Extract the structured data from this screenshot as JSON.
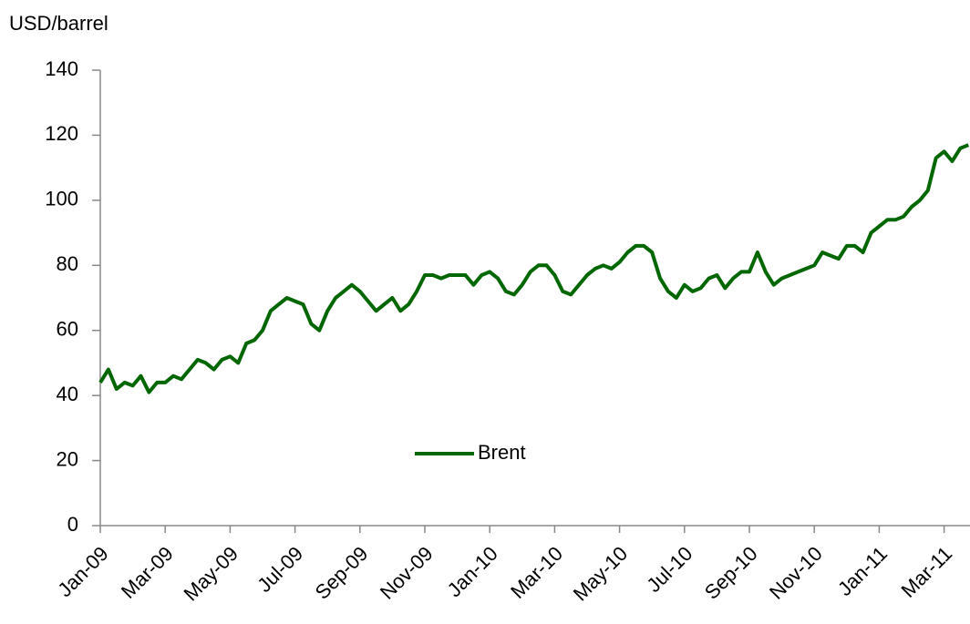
{
  "chart_data": {
    "type": "line",
    "y_label": "USD/barrel",
    "categories": [
      "Jan-09",
      null,
      null,
      null,
      null,
      null,
      null,
      null,
      "Mar-09",
      null,
      null,
      null,
      null,
      null,
      null,
      null,
      "May-09",
      null,
      null,
      null,
      null,
      null,
      null,
      null,
      "Jul-09",
      null,
      null,
      null,
      null,
      null,
      null,
      null,
      "Sep-09",
      null,
      null,
      null,
      null,
      null,
      null,
      null,
      "Nov-09",
      null,
      null,
      null,
      null,
      null,
      null,
      null,
      "Jan-10",
      null,
      null,
      null,
      null,
      null,
      null,
      null,
      "Mar-10",
      null,
      null,
      null,
      null,
      null,
      null,
      null,
      "May-10",
      null,
      null,
      null,
      null,
      null,
      null,
      null,
      "Jul-10",
      null,
      null,
      null,
      null,
      null,
      null,
      null,
      "Sep-10",
      null,
      null,
      null,
      null,
      null,
      null,
      null,
      "Nov-10",
      null,
      null,
      null,
      null,
      null,
      null,
      null,
      "Jan-11",
      null,
      null,
      null,
      null,
      null,
      null,
      null,
      "Mar-11",
      null,
      null,
      null
    ],
    "series": [
      {
        "name": "Brent",
        "color": "#006600",
        "values": [
          44,
          48,
          42,
          44,
          43,
          46,
          41,
          44,
          44,
          46,
          45,
          48,
          51,
          50,
          48,
          51,
          52,
          50,
          56,
          57,
          60,
          66,
          68,
          70,
          69,
          68,
          62,
          60,
          66,
          70,
          72,
          74,
          72,
          69,
          66,
          68,
          70,
          66,
          68,
          72,
          77,
          77,
          76,
          77,
          77,
          77,
          74,
          77,
          78,
          76,
          72,
          71,
          74,
          78,
          80,
          80,
          77,
          72,
          71,
          74,
          77,
          79,
          80,
          79,
          81,
          84,
          86,
          86,
          84,
          76,
          72,
          70,
          74,
          72,
          73,
          76,
          77,
          73,
          76,
          78,
          78,
          84,
          78,
          74,
          76,
          77,
          78,
          79,
          80,
          84,
          83,
          82,
          86,
          86,
          84,
          90,
          92,
          94,
          94,
          95,
          98,
          100,
          103,
          113,
          115,
          112,
          116,
          117
        ]
      }
    ],
    "ylim": [
      0,
      140
    ],
    "yticks": [
      0,
      20,
      40,
      60,
      80,
      100,
      120,
      140
    ],
    "grid": false
  }
}
